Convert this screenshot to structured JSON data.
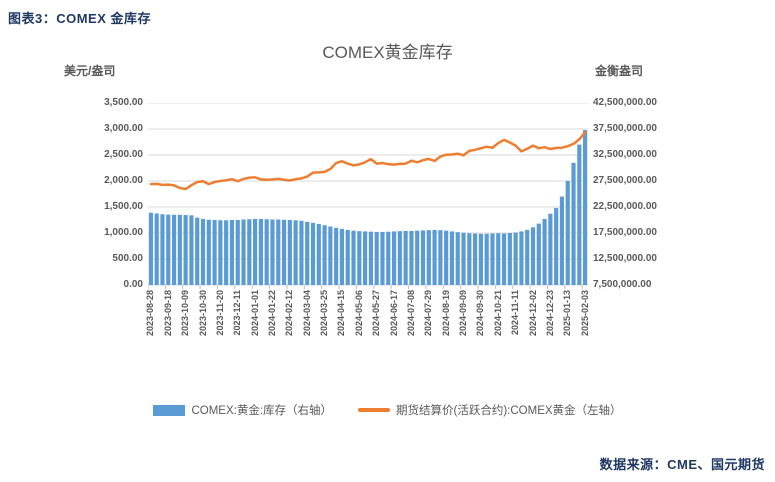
{
  "page": {
    "header": "图表3：COMEX 金库存",
    "source": "数据来源：CME、国元期货"
  },
  "colors": {
    "bar": "#5B9BD5",
    "line": "#ED7D31",
    "gridline": "#D9D9D9",
    "tick_mark": "#BFBFBF",
    "heading_blue": "#1F3864",
    "text_gray": "#595959"
  },
  "chart_data": {
    "type": "combo-bar-line",
    "title": "COMEX黄金库存",
    "grid": true,
    "legend_position": "bottom",
    "left_axis": {
      "label": "美元/盎司",
      "min": 0,
      "max": 3500,
      "step": 500
    },
    "right_axis": {
      "label": "金衡盎司",
      "min": 7500000,
      "max": 42500000,
      "step": 5000000
    },
    "left_ticks": [
      "3,500.00",
      "3,000.00",
      "2,500.00",
      "2,000.00",
      "1,500.00",
      "1,000.00",
      "500.00",
      "0.00"
    ],
    "right_ticks": [
      "42,500,000.00",
      "37,500,000.00",
      "32,500,000.00",
      "27,500,000.00",
      "22,500,000.00",
      "17,500,000.00",
      "12,500,000.00",
      "7,500,000.00"
    ],
    "x_label_every": 3,
    "x": [
      "2023-08-28",
      "2023-09-04",
      "2023-09-11",
      "2023-09-18",
      "2023-09-25",
      "2023-10-02",
      "2023-10-09",
      "2023-10-16",
      "2023-10-23",
      "2023-10-30",
      "2023-11-06",
      "2023-11-13",
      "2023-11-20",
      "2023-11-27",
      "2023-12-04",
      "2023-12-11",
      "2023-12-18",
      "2023-12-25",
      "2024-01-01",
      "2024-01-08",
      "2024-01-15",
      "2024-01-22",
      "2024-01-29",
      "2024-02-05",
      "2024-02-12",
      "2024-02-19",
      "2024-02-26",
      "2024-03-04",
      "2024-03-11",
      "2024-03-18",
      "2024-03-25",
      "2024-04-01",
      "2024-04-08",
      "2024-04-15",
      "2024-04-22",
      "2024-04-29",
      "2024-05-06",
      "2024-05-13",
      "2024-05-20",
      "2024-05-27",
      "2024-06-03",
      "2024-06-10",
      "2024-06-17",
      "2024-06-24",
      "2024-07-01",
      "2024-07-08",
      "2024-07-15",
      "2024-07-22",
      "2024-07-29",
      "2024-08-05",
      "2024-08-12",
      "2024-08-19",
      "2024-08-26",
      "2024-09-02",
      "2024-09-09",
      "2024-09-16",
      "2024-09-23",
      "2024-09-30",
      "2024-10-07",
      "2024-10-14",
      "2024-10-21",
      "2024-10-28",
      "2024-11-04",
      "2024-11-11",
      "2024-11-18",
      "2024-11-25",
      "2024-12-02",
      "2024-12-09",
      "2024-12-16",
      "2024-12-23",
      "2024-12-30",
      "2025-01-06",
      "2025-01-13",
      "2025-01-20",
      "2025-01-27",
      "2025-02-03"
    ],
    "series": [
      {
        "name": "COMEX:黄金:库存（右轴）",
        "type": "bar",
        "axis": "right",
        "color": "#5B9BD5",
        "values": [
          21400000,
          21250000,
          21100000,
          21050000,
          21000000,
          21000000,
          20950000,
          20900000,
          20450000,
          20200000,
          20050000,
          20000000,
          19950000,
          19950000,
          20000000,
          20000000,
          20100000,
          20150000,
          20200000,
          20200000,
          20150000,
          20100000,
          20100000,
          20050000,
          20000000,
          19950000,
          19850000,
          19650000,
          19450000,
          19250000,
          19000000,
          18750000,
          18500000,
          18300000,
          18100000,
          17950000,
          17850000,
          17800000,
          17750000,
          17700000,
          17700000,
          17750000,
          17800000,
          17850000,
          17900000,
          17900000,
          17950000,
          18000000,
          18050000,
          18100000,
          18050000,
          17950000,
          17800000,
          17650000,
          17550000,
          17450000,
          17400000,
          17350000,
          17350000,
          17400000,
          17450000,
          17400000,
          17500000,
          17600000,
          17800000,
          18100000,
          18600000,
          19300000,
          20200000,
          21200000,
          22300000,
          24500000,
          27500000,
          31000000,
          34500000,
          37300000
        ]
      },
      {
        "name": "期货结算价(活跃合约):COMEX黄金（左轴）",
        "type": "line",
        "axis": "left",
        "color": "#ED7D31",
        "values": [
          1940,
          1945,
          1925,
          1930,
          1915,
          1865,
          1845,
          1920,
          1980,
          1995,
          1940,
          1980,
          2000,
          2015,
          2035,
          1995,
          2040,
          2065,
          2070,
          2030,
          2025,
          2030,
          2040,
          2025,
          2010,
          2035,
          2050,
          2085,
          2160,
          2165,
          2175,
          2230,
          2345,
          2380,
          2335,
          2300,
          2320,
          2360,
          2420,
          2335,
          2345,
          2325,
          2315,
          2330,
          2335,
          2390,
          2360,
          2400,
          2425,
          2385,
          2470,
          2505,
          2510,
          2525,
          2495,
          2580,
          2600,
          2630,
          2660,
          2640,
          2730,
          2790,
          2740,
          2680,
          2570,
          2620,
          2680,
          2630,
          2650,
          2615,
          2635,
          2640,
          2670,
          2715,
          2800,
          2940
        ]
      }
    ]
  }
}
